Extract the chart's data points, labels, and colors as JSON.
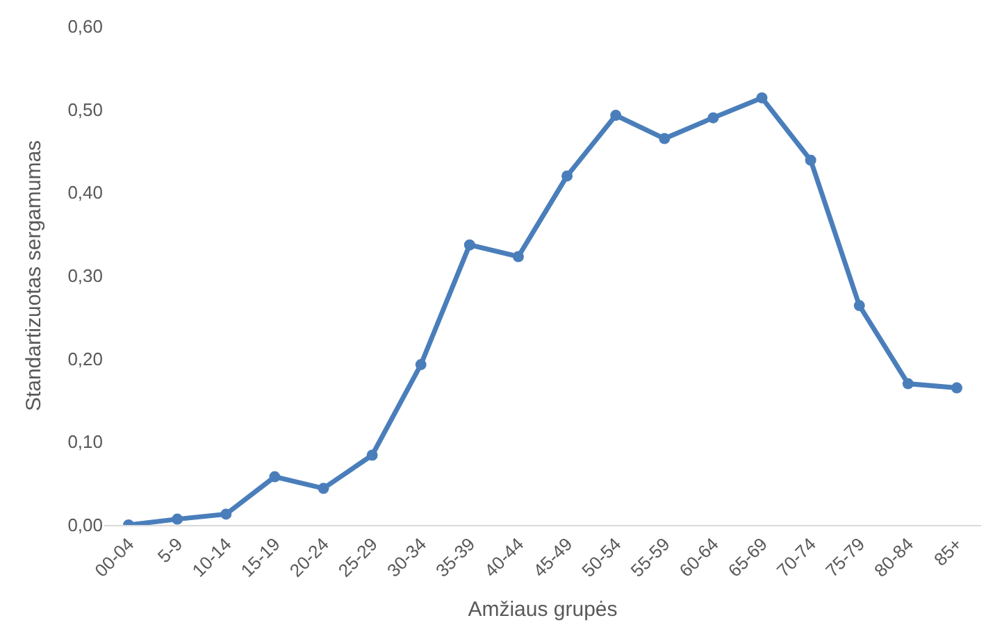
{
  "chart_data": {
    "type": "line",
    "xlabel": "Amžiaus grupės",
    "ylabel": "Standartizuotas sergamumas",
    "categories": [
      "00-04",
      "5-9",
      "10-14",
      "15-19",
      "20-24",
      "25-29",
      "30-34",
      "35-39",
      "40-44",
      "45-49",
      "50-54",
      "55-59",
      "60-64",
      "65-69",
      "70-74",
      "75-79",
      "80-84",
      "85+"
    ],
    "series": [
      {
        "color": "#4a7ebb",
        "values": [
          0.0,
          0.007,
          0.013,
          0.058,
          0.044,
          0.084,
          0.193,
          0.337,
          0.323,
          0.42,
          0.493,
          0.465,
          0.49,
          0.514,
          0.439,
          0.264,
          0.17,
          0.165
        ]
      }
    ],
    "ylim": [
      0,
      0.6
    ],
    "yticks": [
      {
        "value": 0,
        "label": "0,00"
      },
      {
        "value": 0.1,
        "label": "0,10"
      },
      {
        "value": 0.2,
        "label": "0,20"
      },
      {
        "value": 0.3,
        "label": "0,30"
      },
      {
        "value": 0.4,
        "label": "0,40"
      },
      {
        "value": 0.5,
        "label": "0,50"
      },
      {
        "value": 0.6,
        "label": "0,60"
      }
    ],
    "grid": false,
    "legend": false,
    "marker": "circle",
    "line_style": "solid"
  }
}
